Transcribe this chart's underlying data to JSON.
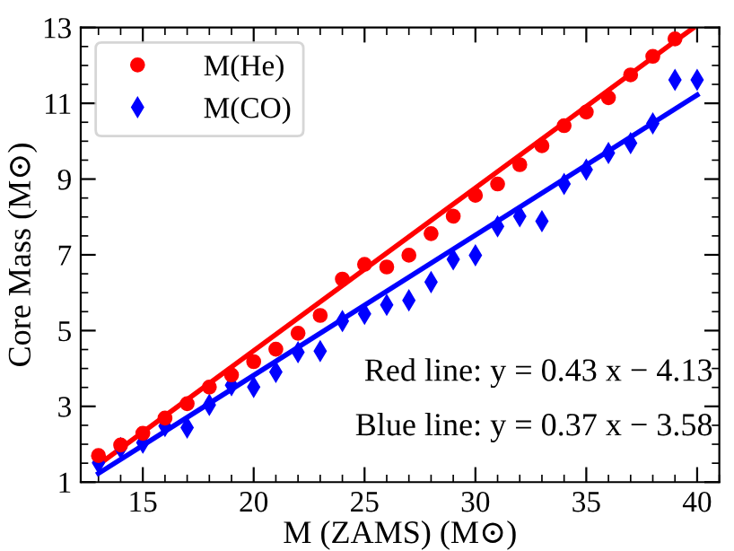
{
  "chart_data": {
    "type": "scatter",
    "xlabel": "M (ZAMS) (M⊙)",
    "ylabel": "Core Mass (M⊙)",
    "xlim": [
      12.2,
      41
    ],
    "ylim": [
      1,
      13
    ],
    "xticks": [
      15,
      20,
      25,
      30,
      35,
      40
    ],
    "yticks": [
      1,
      3,
      5,
      7,
      9,
      11,
      13
    ],
    "grid": false,
    "legend": "top left",
    "series": [
      {
        "name": "M(He)",
        "color": "#ff0000",
        "marker": "circle",
        "x": [
          13,
          14,
          15,
          16,
          17,
          18,
          19,
          20,
          21,
          22,
          23,
          24,
          25,
          26,
          27,
          28,
          29,
          30,
          31,
          32,
          33,
          34,
          35,
          36,
          37,
          38,
          39
        ],
        "values": [
          1.7,
          1.98,
          2.29,
          2.69,
          3.07,
          3.51,
          3.83,
          4.18,
          4.51,
          4.93,
          5.4,
          6.36,
          6.75,
          6.68,
          6.99,
          7.56,
          8.02,
          8.57,
          8.87,
          9.38,
          9.88,
          10.41,
          10.77,
          11.15,
          11.75,
          12.24,
          12.7
        ]
      },
      {
        "name": "M(CO)",
        "color": "#0000ff",
        "marker": "diamond",
        "x": [
          13,
          14,
          15,
          16,
          17,
          18,
          19,
          20,
          21,
          22,
          23,
          24,
          25,
          26,
          27,
          28,
          29,
          30,
          31,
          32,
          33,
          34,
          35,
          36,
          37,
          38,
          39,
          40
        ],
        "values": [
          1.51,
          1.9,
          2.04,
          2.48,
          2.44,
          3.04,
          3.56,
          3.51,
          3.91,
          4.43,
          4.46,
          5.25,
          5.44,
          5.68,
          5.8,
          6.28,
          6.88,
          6.99,
          7.75,
          8.02,
          7.89,
          8.87,
          9.25,
          9.69,
          9.95,
          10.47,
          11.62,
          11.62
        ]
      },
      {
        "type": "line",
        "color": "#ff0000",
        "x": [
          13,
          39.8
        ],
        "values": [
          1.46,
          12.98
        ]
      },
      {
        "type": "line",
        "color": "#0000ff",
        "x": [
          13,
          40
        ],
        "values": [
          1.23,
          11.22
        ]
      }
    ],
    "annotations": [
      "Red line: y = 0.43 x − 4.13",
      "Blue line: y = 0.37 x − 3.58"
    ]
  }
}
